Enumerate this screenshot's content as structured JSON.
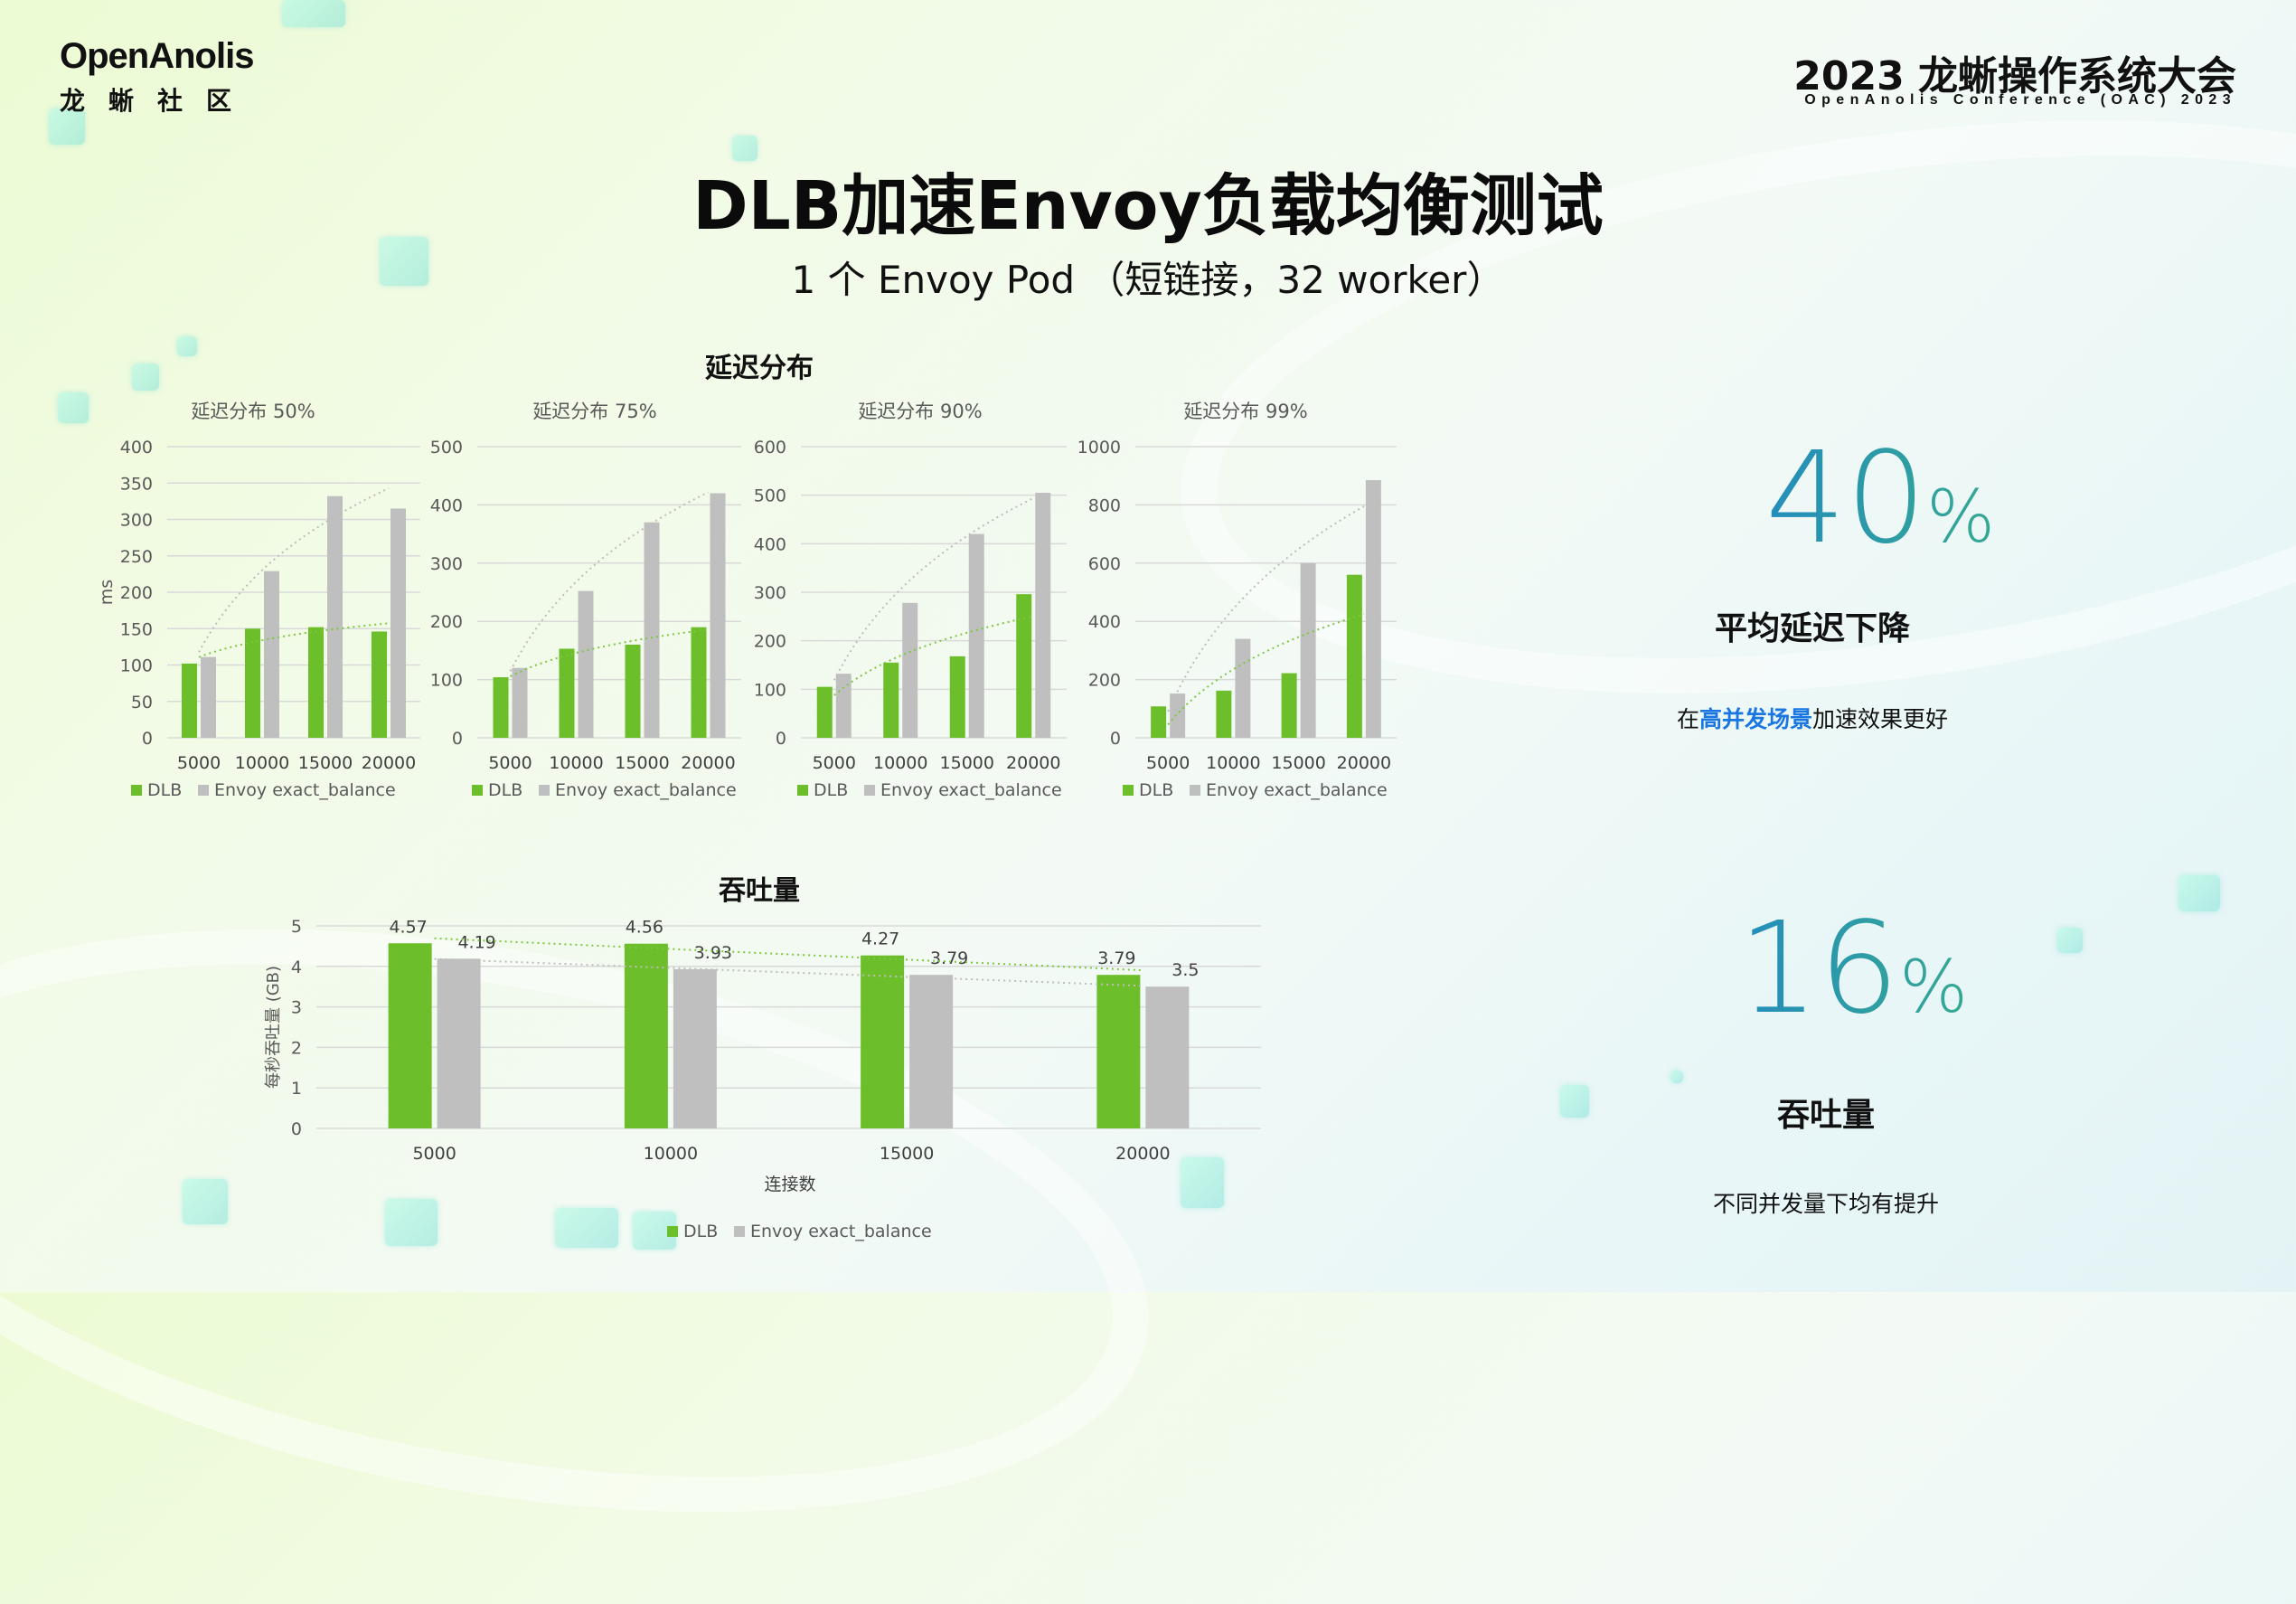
{
  "header": {
    "logo_text": "OpenAnolis",
    "logo_sub": "龙蜥社区",
    "conference_title": "2023 龙蜥操作系统大会",
    "conference_sub": "OpenAnolis Conference (OAC) 2023"
  },
  "title": "DLB加速Envoy负载均衡测试",
  "subtitle": "1 个 Envoy Pod （短链接，32 worker）",
  "latency_section_title": "延迟分布",
  "throughput_section_title": "吞吐量",
  "kpis": {
    "latency": {
      "value_num": "40",
      "value_pct": "%",
      "label": "平均延迟下降",
      "note_pre": "在",
      "note_hl": "高并发场景",
      "note_post": "加速效果更好"
    },
    "throughput": {
      "value_num": "16",
      "value_pct": "%",
      "label": "吞吐量",
      "note": "不同并发量下均有提升"
    }
  },
  "colors": {
    "dlb": "#6cbf2a",
    "envoy": "#bfbfbf",
    "trend_dlb": "#7cc83f",
    "trend_envoy": "#bdbdbd",
    "grid": "#d9d9d9",
    "axis_text": "#595959"
  },
  "chart_data": [
    {
      "type": "bar",
      "title": "延迟分布 50%",
      "categories": [
        "5000",
        "10000",
        "15000",
        "20000"
      ],
      "series": [
        {
          "name": "DLB",
          "values": [
            102,
            150,
            152,
            146
          ]
        },
        {
          "name": "Envoy exact_balance",
          "values": [
            111,
            229,
            332,
            315
          ]
        }
      ],
      "ylim": [
        0,
        400
      ],
      "yticks": [
        0,
        50,
        100,
        150,
        200,
        250,
        300,
        350,
        400
      ],
      "ylabel": "ms",
      "grid": true,
      "legend": "bottom"
    },
    {
      "type": "bar",
      "title": "延迟分布 75%",
      "categories": [
        "5000",
        "10000",
        "15000",
        "20000"
      ],
      "series": [
        {
          "name": "DLB",
          "values": [
            104,
            153,
            160,
            190
          ]
        },
        {
          "name": "Envoy exact_balance",
          "values": [
            120,
            252,
            370,
            420
          ]
        }
      ],
      "ylim": [
        0,
        500
      ],
      "yticks": [
        0,
        100,
        200,
        300,
        400,
        500
      ],
      "grid": true,
      "legend": "bottom"
    },
    {
      "type": "bar",
      "title": "延迟分布 90%",
      "categories": [
        "5000",
        "10000",
        "15000",
        "20000"
      ],
      "series": [
        {
          "name": "DLB",
          "values": [
            105,
            155,
            168,
            296
          ]
        },
        {
          "name": "Envoy exact_balance",
          "values": [
            132,
            278,
            420,
            505
          ]
        }
      ],
      "ylim": [
        0,
        600
      ],
      "yticks": [
        0,
        100,
        200,
        300,
        400,
        500,
        600
      ],
      "grid": true,
      "legend": "bottom"
    },
    {
      "type": "bar",
      "title": "延迟分布 99%",
      "categories": [
        "5000",
        "10000",
        "15000",
        "20000"
      ],
      "series": [
        {
          "name": "DLB",
          "values": [
            108,
            162,
            222,
            560
          ]
        },
        {
          "name": "Envoy exact_balance",
          "values": [
            152,
            340,
            600,
            885
          ]
        }
      ],
      "ylim": [
        0,
        1000
      ],
      "yticks": [
        0,
        200,
        400,
        600,
        800,
        1000
      ],
      "grid": true,
      "legend": "bottom"
    },
    {
      "type": "bar",
      "title": "吞吐量",
      "categories": [
        "5000",
        "10000",
        "15000",
        "20000"
      ],
      "series": [
        {
          "name": "DLB",
          "values": [
            4.57,
            4.56,
            4.27,
            3.79
          ]
        },
        {
          "name": "Envoy exact_balance",
          "values": [
            4.19,
            3.93,
            3.79,
            3.5
          ]
        }
      ],
      "ylim": [
        0,
        5
      ],
      "yticks": [
        0,
        1,
        2,
        3,
        4,
        5
      ],
      "xlabel": "连接数",
      "ylabel": "每秒吞吐量 (GB)",
      "grid": true,
      "legend": "bottom",
      "data_labels": true
    }
  ]
}
